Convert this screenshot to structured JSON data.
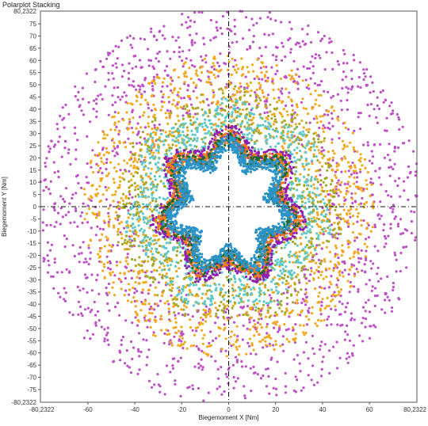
{
  "window": {
    "title": "Polarplot Stacking"
  },
  "chart_data": {
    "type": "scatter",
    "title": "Polarplot Stacking",
    "xlabel": "Biegemoment X [Nm]",
    "ylabel": "Biegemoment Y [Nm]",
    "xlim": [
      -80.2322,
      80.2322
    ],
    "ylim": [
      -80.2322,
      80.2322
    ],
    "xticks": [
      -60,
      -40,
      -20,
      0,
      20,
      40,
      60
    ],
    "yticks": [
      75,
      70,
      65,
      60,
      55,
      50,
      45,
      40,
      35,
      30,
      25,
      20,
      15,
      10,
      5,
      0,
      -5,
      -10,
      -15,
      -20,
      -25,
      -30,
      -35,
      -40,
      -45,
      -50,
      -55,
      -60,
      -65,
      -70,
      -75
    ],
    "corner_labels": {
      "y_max": "80,2322",
      "y_min": "-80,2322",
      "x_min": "-80,2322",
      "x_max": "80,2322"
    },
    "crosshair_at": [
      0,
      0
    ],
    "grid": false,
    "legend": "none",
    "series": [
      {
        "color": "#bf4fc6",
        "points": 1500,
        "r_inner": 40,
        "r_outer": 82,
        "lobes": 0,
        "lobe_amp": 0
      },
      {
        "color": "#f3a91f",
        "points": 1300,
        "r_inner": 32,
        "r_outer": 62,
        "lobes": 0,
        "lobe_amp": 0
      },
      {
        "color": "#a3a82a",
        "points": 650,
        "r_inner": 28,
        "r_outer": 48,
        "lobes": 7,
        "lobe_amp": 2
      },
      {
        "color": "#5ec9cb",
        "points": 1000,
        "r_inner": 22,
        "r_outer": 42,
        "lobes": 7,
        "lobe_amp": 3
      },
      {
        "color": "#8e1fb2",
        "points": 800,
        "r_inner": 24,
        "r_outer": 30,
        "lobes": 7,
        "lobe_amp": 4
      },
      {
        "color": "#f07a1e",
        "points": 900,
        "r_inner": 22,
        "r_outer": 28,
        "lobes": 7,
        "lobe_amp": 4
      },
      {
        "color": "#1d6a2a",
        "points": 450,
        "r_inner": 21,
        "r_outer": 27,
        "lobes": 7,
        "lobe_amp": 4
      },
      {
        "color": "#2b93c8",
        "points": 1100,
        "r_inner": 19,
        "r_outer": 25,
        "lobes": 7,
        "lobe_amp": 4
      }
    ]
  }
}
